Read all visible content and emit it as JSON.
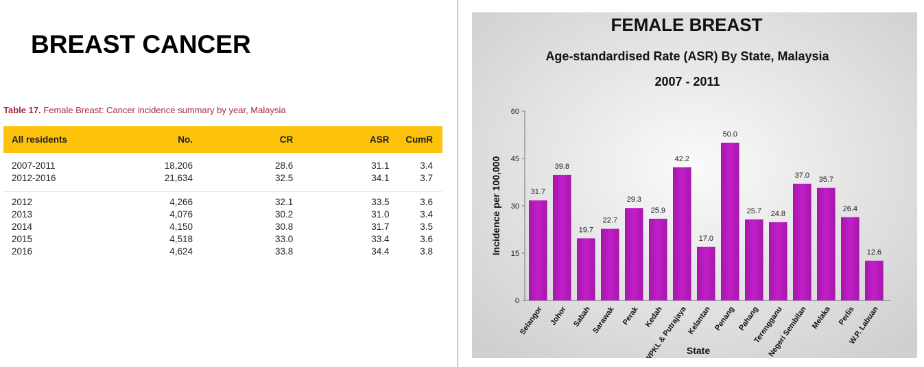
{
  "slide_title": "BREAST CANCER",
  "table": {
    "caption_bold": "Table 17.",
    "caption": " Female Breast: Cancer incidence summary by year, Malaysia",
    "headers": [
      "All residents",
      "No.",
      "CR",
      "ASR",
      "CumR"
    ],
    "group1": [
      [
        "2007-2011",
        "18,206",
        "28.6",
        "31.1",
        "3.4"
      ],
      [
        "2012-2016",
        "21,634",
        "32.5",
        "34.1",
        "3.7"
      ]
    ],
    "group2": [
      [
        "2012",
        "4,266",
        "32.1",
        "33.5",
        "3.6"
      ],
      [
        "2013",
        "4,076",
        "30.2",
        "31.0",
        "3.4"
      ],
      [
        "2014",
        "4,150",
        "30.8",
        "31.7",
        "3.5"
      ],
      [
        "2015",
        "4,518",
        "33.0",
        "33.4",
        "3.6"
      ],
      [
        "2016",
        "4,624",
        "33.8",
        "34.4",
        "3.8"
      ]
    ]
  },
  "chart_data": {
    "type": "bar",
    "title": "FEMALE BREAST",
    "subtitle": "Age-standardised Rate (ASR) By State, Malaysia",
    "period": "2007 - 2011",
    "xlabel": "State",
    "ylabel": "Incidence per 100,000",
    "ylim": [
      0,
      60
    ],
    "yticks": [
      0,
      15,
      30,
      45,
      60
    ],
    "categories": [
      "Selangor",
      "Johor",
      "Sabah",
      "Sarawak",
      "Perak",
      "Kedah",
      "WPKL & Putrajaya",
      "Kelantan",
      "Penang",
      "Pahang",
      "Terengganu",
      "Negeri Sembilan",
      "Melaka",
      "Perlis",
      "W.P. Labuan"
    ],
    "values": [
      31.7,
      39.8,
      19.7,
      22.7,
      29.3,
      25.9,
      42.2,
      17.0,
      50.0,
      25.7,
      24.8,
      37.0,
      35.7,
      26.4,
      12.6
    ],
    "bar_color": "#c11fc8"
  }
}
